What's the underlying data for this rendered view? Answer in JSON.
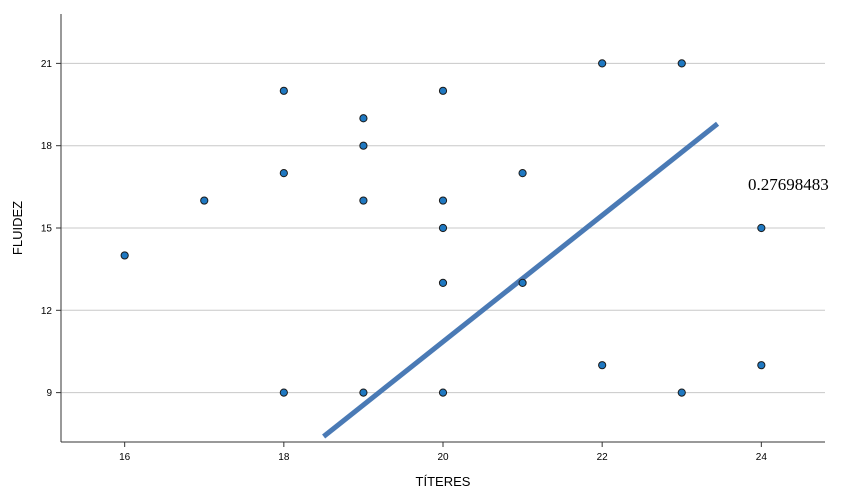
{
  "chart_data": {
    "type": "scatter",
    "xlabel": "TÍTERES",
    "ylabel": "FLUIDEZ",
    "xlim": [
      15.2,
      24.8
    ],
    "ylim": [
      7.2,
      22.8
    ],
    "x_ticks": [
      16,
      18,
      20,
      22,
      24
    ],
    "y_ticks": [
      9,
      12,
      15,
      18,
      21
    ],
    "grid": "horizontal",
    "point_color": "#1f78c1",
    "line_color": "#4a7ab5",
    "series": [
      {
        "points": [
          {
            "x": 16,
            "y": 14
          },
          {
            "x": 17,
            "y": 16
          },
          {
            "x": 18,
            "y": 20
          },
          {
            "x": 18,
            "y": 17
          },
          {
            "x": 18,
            "y": 9
          },
          {
            "x": 19,
            "y": 19
          },
          {
            "x": 19,
            "y": 18
          },
          {
            "x": 19,
            "y": 16
          },
          {
            "x": 19,
            "y": 9
          },
          {
            "x": 20,
            "y": 20
          },
          {
            "x": 20,
            "y": 16
          },
          {
            "x": 20,
            "y": 15
          },
          {
            "x": 20,
            "y": 13
          },
          {
            "x": 20,
            "y": 9
          },
          {
            "x": 21,
            "y": 17
          },
          {
            "x": 21,
            "y": 13
          },
          {
            "x": 22,
            "y": 21
          },
          {
            "x": 22,
            "y": 10
          },
          {
            "x": 23,
            "y": 21
          },
          {
            "x": 23,
            "y": 9
          },
          {
            "x": 24,
            "y": 15
          },
          {
            "x": 24,
            "y": 10
          }
        ]
      }
    ],
    "trend_line": {
      "x_start": 18.5,
      "y_start": 7.4,
      "x_end": 23.45,
      "y_end": 18.8
    },
    "annotation": "0.27698483"
  }
}
